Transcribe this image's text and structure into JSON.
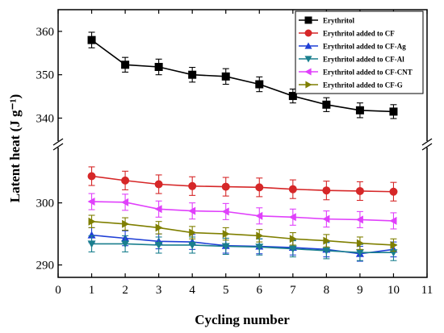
{
  "chart_data": {
    "type": "line",
    "xlabel": "Cycling number",
    "ylabel": "Latent heat (J g⁻¹)",
    "xlim": [
      0,
      11
    ],
    "x_ticks": [
      "0",
      "1",
      "2",
      "3",
      "4",
      "5",
      "6",
      "7",
      "8",
      "9",
      "10",
      "11"
    ],
    "y_axis_break": true,
    "y_upper_range": [
      336,
      365
    ],
    "y_upper_ticks": [
      "340",
      "350",
      "360"
    ],
    "y_lower_range": [
      288,
      308
    ],
    "y_lower_ticks": [
      "290",
      "300"
    ],
    "x": [
      1,
      2,
      3,
      4,
      5,
      6,
      7,
      8,
      9,
      10
    ],
    "legend_position": "top-right",
    "series": [
      {
        "name": "Erythritol",
        "marker": "square",
        "color": "#000000",
        "panel": "upper",
        "values": [
          358.0,
          352.3,
          351.8,
          350.0,
          349.6,
          347.8,
          345.1,
          343.1,
          341.8,
          341.5
        ],
        "errors": [
          1.8,
          1.7,
          1.8,
          1.7,
          1.8,
          1.7,
          1.6,
          1.6,
          1.7,
          1.6
        ]
      },
      {
        "name": "Erythritol added to CF",
        "marker": "circle",
        "color": "#d62728",
        "panel": "lower",
        "values": [
          304.3,
          303.6,
          303.0,
          302.7,
          302.6,
          302.5,
          302.2,
          302.0,
          301.9,
          301.8
        ],
        "errors": [
          1.5,
          1.5,
          1.5,
          1.5,
          1.5,
          1.5,
          1.5,
          1.5,
          1.5,
          1.5
        ]
      },
      {
        "name": "Erythritol added to CF-Ag",
        "marker": "triangle-up",
        "color": "#1f3fd6",
        "panel": "lower",
        "values": [
          294.8,
          294.3,
          293.8,
          293.7,
          293.1,
          293.0,
          292.8,
          292.5,
          291.8,
          292.5
        ],
        "errors": [
          1.2,
          1.2,
          1.2,
          1.2,
          1.2,
          1.2,
          1.2,
          1.2,
          1.2,
          1.2
        ]
      },
      {
        "name": "Erythritol added to CF-Al",
        "marker": "triangle-down",
        "color": "#1a7f8e",
        "panel": "lower",
        "values": [
          293.4,
          293.4,
          293.2,
          293.2,
          293.0,
          292.9,
          292.6,
          292.3,
          292.0,
          292.0
        ],
        "errors": [
          1.3,
          1.3,
          1.3,
          1.3,
          1.3,
          1.3,
          1.3,
          1.3,
          1.3,
          1.3
        ]
      },
      {
        "name": "Erythritol added to CF-CNT",
        "marker": "triangle-left",
        "color": "#e040fb",
        "panel": "lower",
        "values": [
          300.2,
          300.1,
          299.0,
          298.7,
          298.6,
          297.9,
          297.7,
          297.4,
          297.3,
          297.1
        ],
        "errors": [
          1.3,
          1.3,
          1.3,
          1.3,
          1.3,
          1.3,
          1.3,
          1.3,
          1.3,
          1.3
        ]
      },
      {
        "name": "Erythritol added to CF-G",
        "marker": "triangle-right",
        "color": "#7f7f00",
        "panel": "lower",
        "values": [
          297.0,
          296.6,
          296.0,
          295.2,
          295.0,
          294.7,
          294.2,
          293.9,
          293.5,
          293.2
        ],
        "errors": [
          1.0,
          1.0,
          1.0,
          1.0,
          1.0,
          1.0,
          1.0,
          1.0,
          1.0,
          1.0
        ]
      }
    ]
  }
}
